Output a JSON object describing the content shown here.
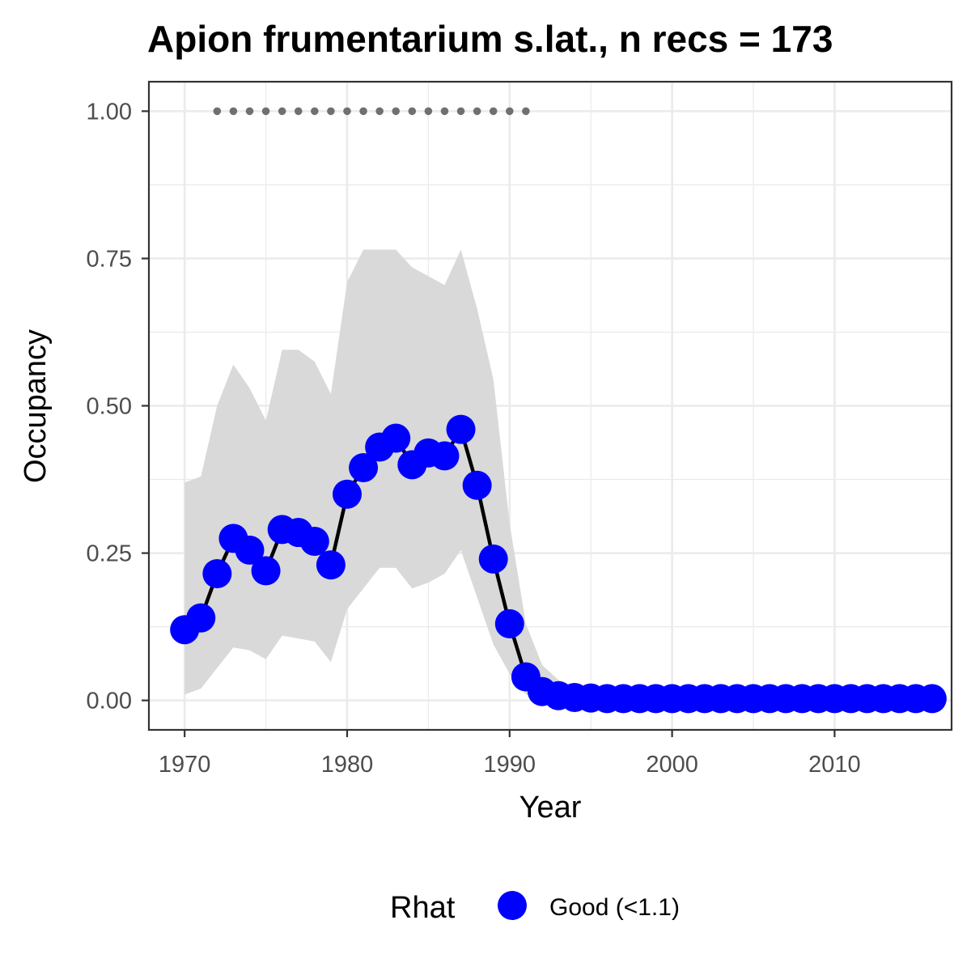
{
  "chart_data": {
    "type": "line",
    "title": "Apion frumentarium s.lat., n recs = 173",
    "xlabel": "Year",
    "ylabel": "Occupancy",
    "xlim": [
      1967.8,
      2017.2
    ],
    "ylim": [
      -0.05,
      1.05
    ],
    "x_ticks": [
      1970,
      1980,
      1990,
      2000,
      2010
    ],
    "y_ticks": [
      0.0,
      0.25,
      0.5,
      0.75,
      1.0
    ],
    "x_tick_labels": [
      "1970",
      "1980",
      "1990",
      "2000",
      "2010"
    ],
    "y_tick_labels": [
      "0.00",
      "0.25",
      "0.50",
      "0.75",
      "1.00"
    ],
    "grid": true,
    "legend": {
      "title": "Rhat",
      "position": "bottom",
      "entries": [
        {
          "label": "Good (<1.1)",
          "color": "#0000ff"
        }
      ]
    },
    "colors": {
      "points": "#0000ff",
      "line": "#000000",
      "ribbon": "#d9d9d9",
      "records": "#707070",
      "grid": "#ebebeb",
      "panel_border": "#333333"
    },
    "series": [
      {
        "x": [
          1970,
          1971,
          1972,
          1973,
          1974,
          1975,
          1976,
          1977,
          1978,
          1979,
          1980,
          1981,
          1982,
          1983,
          1984,
          1985,
          1986,
          1987,
          1988,
          1989,
          1990,
          1991,
          1992,
          1993,
          1994,
          1995,
          1996,
          1997,
          1998,
          1999,
          2000,
          2001,
          2002,
          2003,
          2004,
          2005,
          2006,
          2007,
          2008,
          2009,
          2010,
          2011,
          2012,
          2013,
          2014,
          2015,
          2016
        ],
        "values": [
          0.12,
          0.14,
          0.215,
          0.275,
          0.255,
          0.22,
          0.29,
          0.285,
          0.27,
          0.23,
          0.35,
          0.395,
          0.43,
          0.445,
          0.4,
          0.42,
          0.415,
          0.46,
          0.365,
          0.24,
          0.13,
          0.04,
          0.015,
          0.008,
          0.005,
          0.004,
          0.003,
          0.003,
          0.003,
          0.003,
          0.003,
          0.003,
          0.003,
          0.003,
          0.003,
          0.003,
          0.003,
          0.003,
          0.003,
          0.003,
          0.003,
          0.003,
          0.003,
          0.003,
          0.003,
          0.003,
          0.003
        ],
        "ci_lower": [
          0.01,
          0.02,
          0.055,
          0.09,
          0.085,
          0.07,
          0.11,
          0.105,
          0.1,
          0.065,
          0.155,
          0.19,
          0.225,
          0.225,
          0.19,
          0.2,
          0.215,
          0.255,
          0.175,
          0.095,
          0.045,
          0.01,
          0.002,
          0.0,
          0.0,
          0.0,
          0.0,
          0.0,
          0.0,
          0.0,
          0.0,
          0.0,
          0.0,
          0.0,
          0.0,
          0.0,
          0.0,
          0.0,
          0.0,
          0.0,
          0.0,
          0.0,
          0.0,
          0.0,
          0.0,
          0.0,
          0.0
        ],
        "ci_upper": [
          0.37,
          0.38,
          0.5,
          0.57,
          0.53,
          0.475,
          0.595,
          0.595,
          0.575,
          0.52,
          0.71,
          0.765,
          0.765,
          0.765,
          0.735,
          0.72,
          0.705,
          0.765,
          0.665,
          0.545,
          0.3,
          0.13,
          0.06,
          0.035,
          0.025,
          0.02,
          0.02,
          0.02,
          0.02,
          0.02,
          0.02,
          0.02,
          0.02,
          0.02,
          0.02,
          0.02,
          0.02,
          0.02,
          0.02,
          0.02,
          0.02,
          0.02,
          0.02,
          0.02,
          0.02,
          0.02,
          0.02
        ]
      }
    ],
    "record_years": {
      "y": 1.0,
      "x": [
        1972,
        1973,
        1974,
        1975,
        1976,
        1977,
        1978,
        1979,
        1980,
        1981,
        1982,
        1983,
        1984,
        1985,
        1986,
        1987,
        1988,
        1989,
        1990,
        1991
      ]
    }
  }
}
